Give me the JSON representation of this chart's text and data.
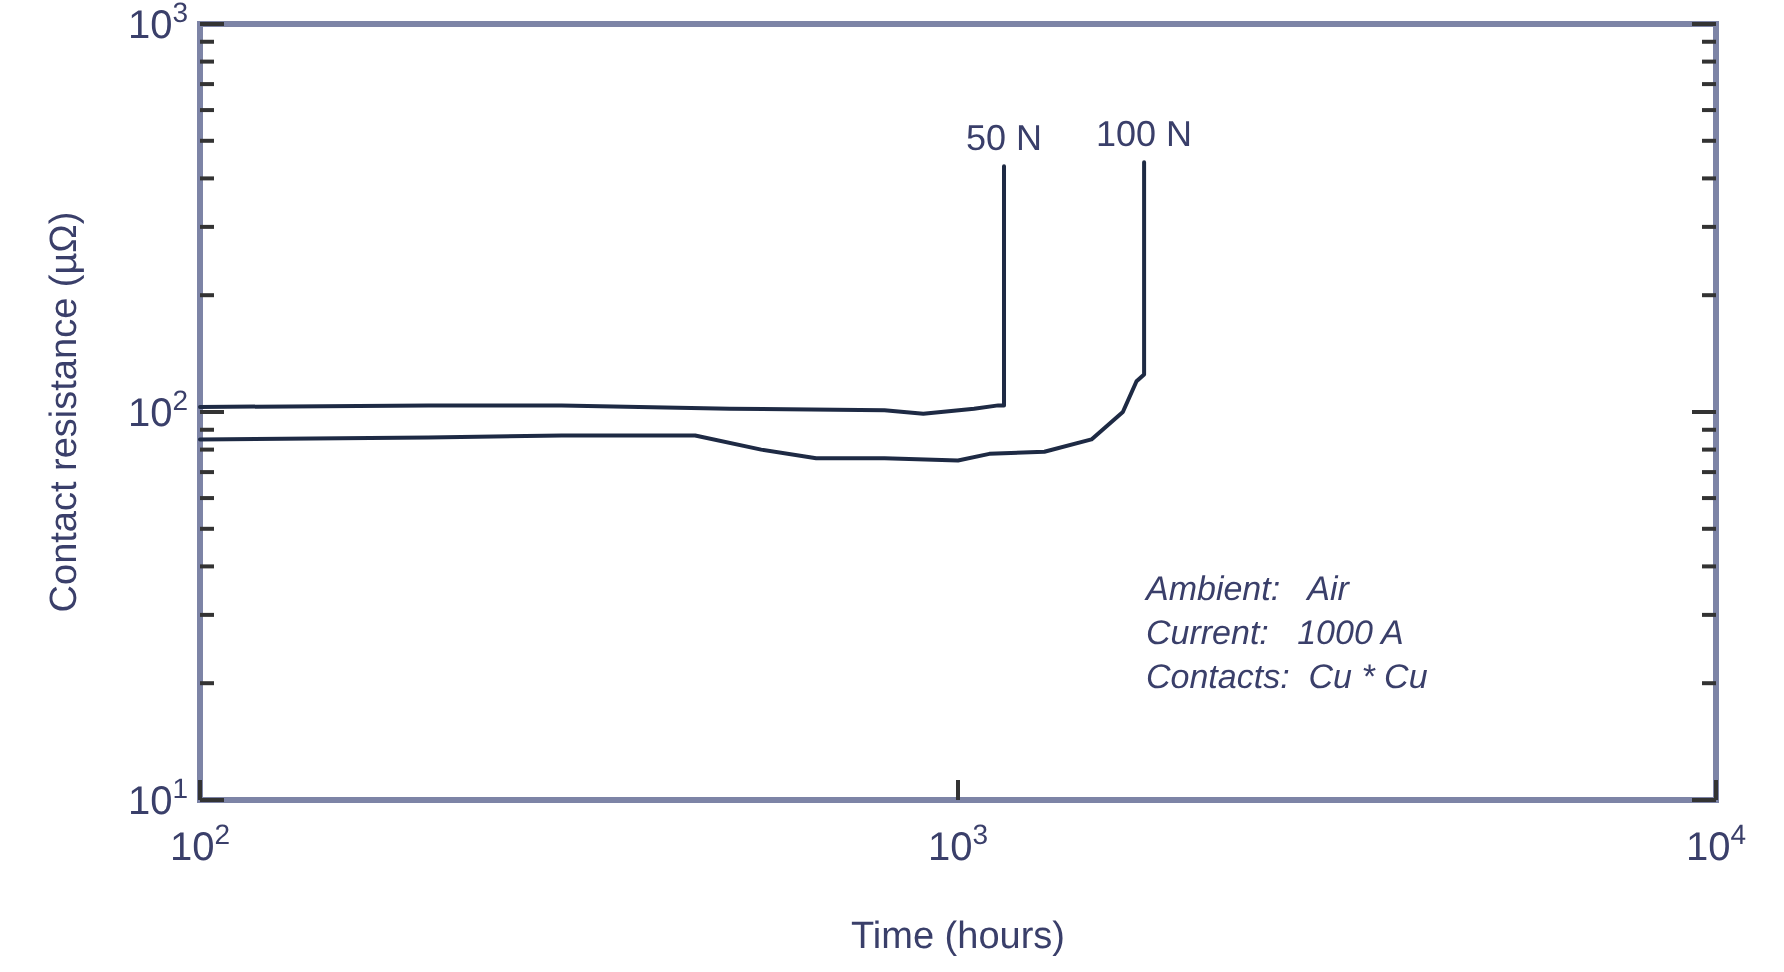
{
  "chart_data": {
    "type": "line",
    "xlabel": "Time (hours)",
    "ylabel": "Contact resistance (µΩ)",
    "log": "xy",
    "xlim": [
      100,
      10000
    ],
    "ylim": [
      10,
      1000
    ],
    "xticks": [
      {
        "value": 100,
        "label": "10$^{2}$"
      },
      {
        "value": 1000,
        "label": "10$^{3}$"
      },
      {
        "value": 10000,
        "label": "10$^{4}$"
      }
    ],
    "yticks": [
      {
        "value": 10,
        "label": "10$^{1}$"
      },
      {
        "value": 20,
        "label": null
      },
      {
        "value": 30,
        "label": null
      },
      {
        "value": 40,
        "label": null
      },
      {
        "value": 50,
        "label": null
      },
      {
        "value": 60,
        "label": null
      },
      {
        "value": 70,
        "label": null
      },
      {
        "value": 80,
        "label": null
      },
      {
        "value": 90,
        "label": null
      },
      {
        "value": 100,
        "label": "10$^{2}$"
      },
      {
        "value": 200,
        "label": null
      },
      {
        "value": 300,
        "label": null
      },
      {
        "value": 400,
        "label": null
      },
      {
        "value": 500,
        "label": null
      },
      {
        "value": 600,
        "label": null
      },
      {
        "value": 700,
        "label": null
      },
      {
        "value": 800,
        "label": null
      },
      {
        "value": 900,
        "label": null
      },
      {
        "value": 1000,
        "label": "10$^{3}$"
      }
    ],
    "grid": false,
    "marker": "none",
    "line_style": "solid",
    "series": [
      {
        "color": "#1e2a44",
        "x": [
          100,
          200,
          300,
          500,
          800,
          900,
          1050,
          1130,
          1150,
          1150
        ],
        "values": [
          103,
          104,
          104,
          102,
          101,
          99,
          102,
          104,
          104,
          430
        ]
      },
      {
        "color": "#1e2a44",
        "x": [
          100,
          200,
          300,
          450,
          550,
          650,
          800,
          1000,
          1100,
          1300,
          1500,
          1650,
          1720,
          1760,
          1760
        ],
        "values": [
          85,
          86,
          87,
          87,
          80,
          76,
          76,
          75,
          78,
          79,
          85,
          100,
          120,
          125,
          440
        ]
      }
    ],
    "annotations": [
      {
        "text": "50 N",
        "x": 1150,
        "y": 430
      },
      {
        "text": "100 N",
        "x": 1760,
        "y": 440
      },
      "Ambient:   Air",
      "Current:   1000 A",
      "Contacts:  Cu * Cu"
    ]
  }
}
